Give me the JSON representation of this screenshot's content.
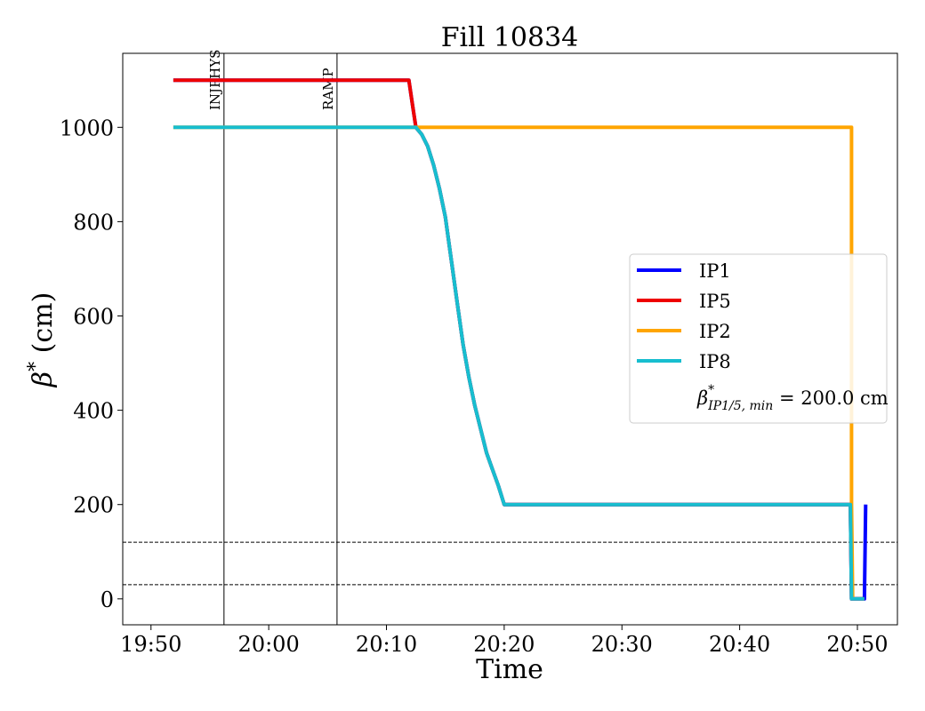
{
  "chart_data": {
    "type": "line",
    "title": "Fill 10834",
    "xlabel": "Time",
    "ylabel": "β* (cm)",
    "xlim": [
      "19:47.6",
      "20:53.4"
    ],
    "ylim": [
      -55,
      1157
    ],
    "xticks": [
      "19:50",
      "20:00",
      "20:10",
      "20:20",
      "20:30",
      "20:40",
      "20:50"
    ],
    "yticks": [
      0,
      200,
      400,
      600,
      800,
      1000
    ],
    "grid": false,
    "legend_position": "center-right",
    "series": [
      {
        "name": "IP1",
        "color": "#0000ff",
        "points": [
          [
            "19:51.9",
            1100
          ],
          [
            "20:11.9",
            1100
          ],
          [
            "20:12.2",
            1050
          ],
          [
            "20:12.5",
            1000
          ],
          [
            "20:13.0",
            985
          ],
          [
            "20:13.5",
            960
          ],
          [
            "20:14.0",
            920
          ],
          [
            "20:14.5",
            870
          ],
          [
            "20:15.0",
            810
          ],
          [
            "20:15.5",
            720
          ],
          [
            "20:16.0",
            630
          ],
          [
            "20:16.5",
            540
          ],
          [
            "20:17.0",
            470
          ],
          [
            "20:17.5",
            410
          ],
          [
            "20:18.0",
            360
          ],
          [
            "20:18.5",
            310
          ],
          [
            "20:19.0",
            275
          ],
          [
            "20:19.5",
            240
          ],
          [
            "20:20.0",
            200
          ],
          [
            "20:49.4",
            200
          ],
          [
            "20:49.5",
            0
          ],
          [
            "20:50.6",
            0
          ],
          [
            "20:50.7",
            200
          ]
        ]
      },
      {
        "name": "IP5",
        "color": "#ee0000",
        "points": [
          [
            "19:51.9",
            1100
          ],
          [
            "20:11.9",
            1100
          ],
          [
            "20:12.2",
            1050
          ],
          [
            "20:12.5",
            1000
          ],
          [
            "20:13.0",
            985
          ],
          [
            "20:13.5",
            960
          ],
          [
            "20:14.0",
            920
          ],
          [
            "20:14.5",
            870
          ],
          [
            "20:15.0",
            810
          ],
          [
            "20:15.5",
            720
          ],
          [
            "20:16.0",
            630
          ],
          [
            "20:16.5",
            540
          ],
          [
            "20:17.0",
            470
          ],
          [
            "20:17.5",
            410
          ],
          [
            "20:18.0",
            360
          ],
          [
            "20:18.5",
            310
          ],
          [
            "20:19.0",
            275
          ],
          [
            "20:19.5",
            240
          ],
          [
            "20:20.0",
            200
          ],
          [
            "20:49.4",
            200
          ],
          [
            "20:49.5",
            0
          ],
          [
            "20:50.6",
            0
          ]
        ]
      },
      {
        "name": "IP2",
        "color": "#ffa500",
        "points": [
          [
            "19:51.9",
            1000
          ],
          [
            "20:49.5",
            1000
          ],
          [
            "20:49.5",
            200
          ],
          [
            "20:49.6",
            0
          ]
        ]
      },
      {
        "name": "IP8",
        "color": "#17becf",
        "points": [
          [
            "19:51.9",
            1000
          ],
          [
            "20:12.5",
            1000
          ],
          [
            "20:13.0",
            985
          ],
          [
            "20:13.5",
            960
          ],
          [
            "20:14.0",
            920
          ],
          [
            "20:14.5",
            870
          ],
          [
            "20:15.0",
            810
          ],
          [
            "20:15.5",
            720
          ],
          [
            "20:16.0",
            630
          ],
          [
            "20:16.5",
            540
          ],
          [
            "20:17.0",
            470
          ],
          [
            "20:17.5",
            410
          ],
          [
            "20:18.0",
            360
          ],
          [
            "20:18.5",
            310
          ],
          [
            "20:19.0",
            275
          ],
          [
            "20:19.5",
            240
          ],
          [
            "20:20.0",
            200
          ],
          [
            "20:49.4",
            200
          ],
          [
            "20:49.5",
            0
          ],
          [
            "20:50.6",
            0
          ]
        ]
      }
    ],
    "hlines": [
      120,
      30
    ],
    "vlines": [
      {
        "x": "19:56.2",
        "label": "INJPHYS"
      },
      {
        "x": "20:05.8",
        "label": "RAMP"
      }
    ],
    "legend_note": {
      "prefix": "β",
      "sup": "*",
      "sub": "IP1/5, min",
      "text": " = 200.0 cm"
    }
  }
}
